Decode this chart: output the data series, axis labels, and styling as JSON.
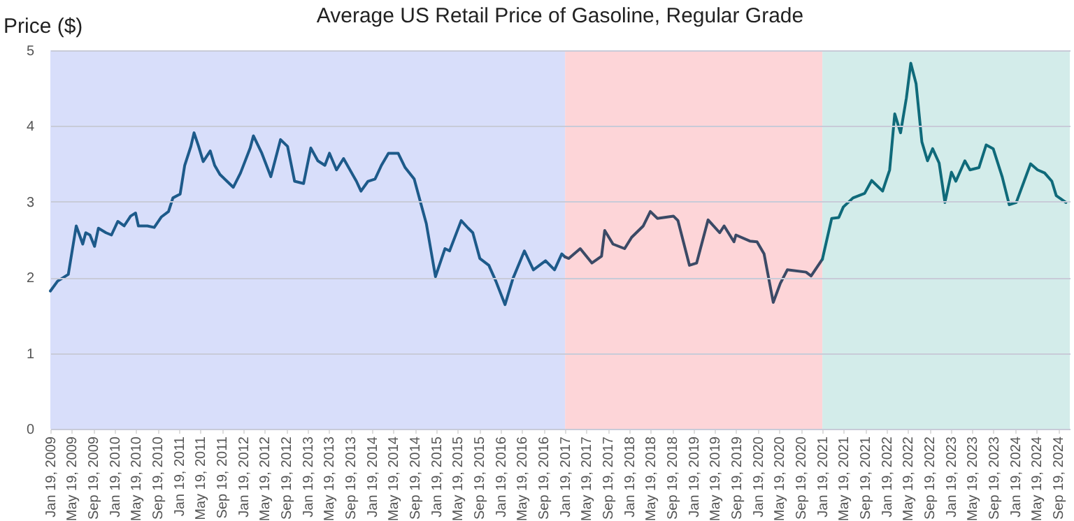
{
  "chart_data": {
    "type": "line",
    "title": "Average US Retail Price of Gasoline, Regular Grade",
    "ylabel": "Price ($)",
    "xlim": [
      "2009-01-19",
      "2024-11-25"
    ],
    "ylim": [
      0,
      5
    ],
    "yticks": [
      0,
      1,
      2,
      3,
      4,
      5
    ],
    "grid": "y",
    "xticks": [
      {
        "value": "2009-01-19",
        "label": "Jan 19, 2009"
      },
      {
        "value": "2009-05-19",
        "label": "May 19, 2009"
      },
      {
        "value": "2009-09-19",
        "label": "Sep 19, 2009"
      },
      {
        "value": "2010-01-19",
        "label": "Jan 19, 2010"
      },
      {
        "value": "2010-05-19",
        "label": "May 19, 2010"
      },
      {
        "value": "2010-09-19",
        "label": "Sep 19, 2010"
      },
      {
        "value": "2011-01-19",
        "label": "Jan 19, 2011"
      },
      {
        "value": "2011-05-19",
        "label": "May 19, 2011"
      },
      {
        "value": "2011-09-19",
        "label": "Sep 19, 2011"
      },
      {
        "value": "2012-01-19",
        "label": "Jan 19, 2012"
      },
      {
        "value": "2012-05-19",
        "label": "May 19, 2012"
      },
      {
        "value": "2012-09-19",
        "label": "Sep 19, 2012"
      },
      {
        "value": "2013-01-19",
        "label": "Jan 19, 2013"
      },
      {
        "value": "2013-05-19",
        "label": "May 19, 2013"
      },
      {
        "value": "2013-09-19",
        "label": "Sep 19, 2013"
      },
      {
        "value": "2014-01-19",
        "label": "Jan 19, 2014"
      },
      {
        "value": "2014-05-19",
        "label": "May 19, 2014"
      },
      {
        "value": "2014-09-19",
        "label": "Sep 19, 2014"
      },
      {
        "value": "2015-01-19",
        "label": "Jan 19, 2015"
      },
      {
        "value": "2015-05-19",
        "label": "May 19, 2015"
      },
      {
        "value": "2015-09-19",
        "label": "Sep 19, 2015"
      },
      {
        "value": "2016-01-19",
        "label": "Jan 19, 2016"
      },
      {
        "value": "2016-05-19",
        "label": "May 19, 2016"
      },
      {
        "value": "2016-09-19",
        "label": "Sep 19, 2016"
      },
      {
        "value": "2017-01-19",
        "label": "Jan 19, 2017"
      },
      {
        "value": "2017-05-19",
        "label": "May 19, 2017"
      },
      {
        "value": "2017-09-19",
        "label": "Sep 19, 2017"
      },
      {
        "value": "2018-01-19",
        "label": "Jan 19, 2018"
      },
      {
        "value": "2018-05-19",
        "label": "May 19, 2018"
      },
      {
        "value": "2018-09-19",
        "label": "Sep 19, 2018"
      },
      {
        "value": "2019-01-19",
        "label": "Jan 19, 2019"
      },
      {
        "value": "2019-05-19",
        "label": "May 19, 2019"
      },
      {
        "value": "2019-09-19",
        "label": "Sep 19, 2019"
      },
      {
        "value": "2020-01-19",
        "label": "Jan 19, 2020"
      },
      {
        "value": "2020-05-19",
        "label": "May 19, 2020"
      },
      {
        "value": "2020-09-19",
        "label": "Sep 19, 2020"
      },
      {
        "value": "2021-01-19",
        "label": "Jan 19, 2021"
      },
      {
        "value": "2021-05-19",
        "label": "May 19, 2021"
      },
      {
        "value": "2021-09-19",
        "label": "Sep 19, 2021"
      },
      {
        "value": "2022-01-19",
        "label": "Jan 19, 2022"
      },
      {
        "value": "2022-05-19",
        "label": "May 19, 2022"
      },
      {
        "value": "2022-09-19",
        "label": "Sep 19, 2022"
      },
      {
        "value": "2023-01-19",
        "label": "Jan 19, 2023"
      },
      {
        "value": "2023-05-19",
        "label": "May 19, 2023"
      },
      {
        "value": "2023-09-19",
        "label": "Sep 19, 2023"
      },
      {
        "value": "2024-01-19",
        "label": "Jan 19, 2024"
      },
      {
        "value": "2024-05-19",
        "label": "May 19, 2024"
      },
      {
        "value": "2024-09-19",
        "label": "Sep 19, 2024"
      }
    ],
    "bands": [
      {
        "axis": "x",
        "from": "2009-01-19",
        "to": "2017-01-20",
        "color": "#d8defa"
      },
      {
        "axis": "x",
        "from": "2017-01-20",
        "to": "2021-01-20",
        "color": "#fdd5d8"
      },
      {
        "axis": "x",
        "from": "2021-01-20",
        "to": "2024-11-25",
        "color": "#d3ecea"
      }
    ],
    "series": [
      {
        "color": "#1d5a8a",
        "x": [
          "2009-01-19",
          "2009-03-01",
          "2009-05-01",
          "2009-06-15",
          "2009-07-22",
          "2009-08-08",
          "2009-09-01",
          "2009-09-27",
          "2009-10-19",
          "2009-12-01",
          "2010-01-01",
          "2010-02-06",
          "2010-03-14",
          "2010-04-20",
          "2010-05-18",
          "2010-06-03",
          "2010-07-24",
          "2010-09-01",
          "2010-10-12",
          "2010-11-21",
          "2010-12-16",
          "2011-01-26",
          "2011-02-21",
          "2011-03-28",
          "2011-04-15",
          "2011-05-11",
          "2011-06-06",
          "2011-07-16",
          "2011-08-10",
          "2011-09-09",
          "2011-10-19",
          "2011-11-24",
          "2012-01-04",
          "2012-02-28",
          "2012-03-17",
          "2012-05-04",
          "2012-06-24",
          "2012-08-18",
          "2012-09-27",
          "2012-11-06",
          "2012-12-27",
          "2013-02-06",
          "2013-03-18",
          "2013-04-27",
          "2013-05-23",
          "2013-07-02",
          "2013-08-11",
          "2013-10-23",
          "2013-11-18",
          "2013-12-28",
          "2014-02-06",
          "2014-03-14",
          "2014-04-23",
          "2014-06-17",
          "2014-07-27",
          "2014-09-16",
          "2014-11-24",
          "2015-01-15",
          "2015-03-10",
          "2015-04-05",
          "2015-06-10",
          "2015-07-20",
          "2015-08-15",
          "2015-09-24",
          "2015-11-14",
          "2015-12-24",
          "2016-02-14",
          "2016-03-29",
          "2016-06-03",
          "2016-07-24",
          "2016-10-01",
          "2016-11-21",
          "2017-01-01",
          "2017-01-20"
        ],
        "values": [
          1.82,
          1.95,
          2.04,
          2.68,
          2.44,
          2.59,
          2.56,
          2.41,
          2.65,
          2.59,
          2.56,
          2.74,
          2.68,
          2.81,
          2.85,
          2.68,
          2.68,
          2.66,
          2.8,
          2.87,
          3.05,
          3.1,
          3.48,
          3.73,
          3.91,
          3.73,
          3.53,
          3.67,
          3.48,
          3.36,
          3.27,
          3.19,
          3.38,
          3.71,
          3.87,
          3.64,
          3.33,
          3.82,
          3.73,
          3.27,
          3.24,
          3.71,
          3.54,
          3.48,
          3.64,
          3.42,
          3.57,
          3.27,
          3.14,
          3.27,
          3.3,
          3.48,
          3.64,
          3.64,
          3.45,
          3.3,
          2.71,
          2.01,
          2.38,
          2.35,
          2.75,
          2.65,
          2.59,
          2.25,
          2.16,
          1.95,
          1.64,
          1.98,
          2.35,
          2.1,
          2.22,
          2.1,
          2.31,
          2.27
        ]
      },
      {
        "color": "#3b4a66",
        "x": [
          "2017-01-20",
          "2017-02-10",
          "2017-04-16",
          "2017-06-21",
          "2017-08-15",
          "2017-09-02",
          "2017-10-19",
          "2017-12-24",
          "2018-02-02",
          "2018-04-09",
          "2018-05-19",
          "2018-06-28",
          "2018-09-27",
          "2018-10-23",
          "2018-12-27",
          "2019-02-06",
          "2019-04-12",
          "2019-06-17",
          "2019-07-12",
          "2019-09-06",
          "2019-09-17",
          "2019-12-05",
          "2020-01-15",
          "2020-02-24",
          "2020-04-16",
          "2020-05-26",
          "2020-07-05",
          "2020-10-19",
          "2020-11-17",
          "2021-01-20"
        ],
        "values": [
          2.27,
          2.25,
          2.38,
          2.19,
          2.28,
          2.62,
          2.44,
          2.38,
          2.53,
          2.68,
          2.87,
          2.78,
          2.81,
          2.75,
          2.16,
          2.19,
          2.76,
          2.59,
          2.68,
          2.47,
          2.56,
          2.48,
          2.47,
          2.31,
          1.67,
          1.92,
          2.1,
          2.07,
          2.02,
          2.24
        ]
      },
      {
        "color": "#0f6a7a",
        "x": [
          "2021-01-20",
          "2021-03-14",
          "2021-04-23",
          "2021-05-19",
          "2021-07-13",
          "2021-09-17",
          "2021-10-27",
          "2021-12-28",
          "2022-02-06",
          "2022-03-07",
          "2022-04-09",
          "2022-05-12",
          "2022-06-06",
          "2022-07-06",
          "2022-08-08",
          "2022-09-09",
          "2022-10-08",
          "2022-11-14",
          "2022-12-17",
          "2023-01-23",
          "2023-02-17",
          "2023-04-09",
          "2023-05-08",
          "2023-06-28",
          "2023-08-08",
          "2023-09-17",
          "2023-11-07",
          "2023-12-17",
          "2024-01-26",
          "2024-04-16",
          "2024-05-26",
          "2024-07-05",
          "2024-08-15",
          "2024-09-09",
          "2024-11-03"
        ],
        "values": [
          2.24,
          2.78,
          2.79,
          2.93,
          3.05,
          3.11,
          3.28,
          3.14,
          3.42,
          4.16,
          3.91,
          4.37,
          4.83,
          4.56,
          3.79,
          3.54,
          3.7,
          3.51,
          2.99,
          3.39,
          3.27,
          3.54,
          3.42,
          3.45,
          3.75,
          3.7,
          3.33,
          2.96,
          2.99,
          3.5,
          3.42,
          3.38,
          3.27,
          3.08,
          2.99
        ]
      }
    ]
  }
}
